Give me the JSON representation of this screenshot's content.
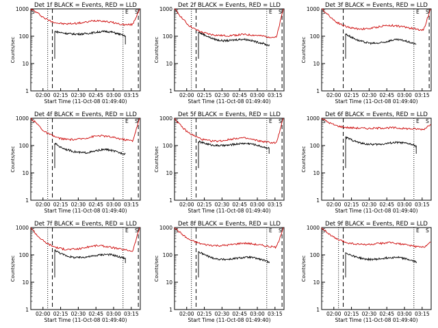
{
  "chart_data": [
    {
      "type": "line",
      "title": "Det 1f BLACK = Events, RED = LLD",
      "xlabel": "Start Time (11-Oct-08 01:49:40)",
      "ylabel": "Counts/sec",
      "x_ticks": [
        "02:00",
        "02:15",
        "02:30",
        "02:45",
        "03:00",
        "03:15"
      ],
      "y_ticks": [
        "1",
        "10",
        "100",
        "1000"
      ],
      "ylim": [
        1,
        1000
      ],
      "y_scale": "log",
      "corner_labels": [
        "S",
        "E",
        "S"
      ],
      "series": [
        {
          "color": "#cc0000",
          "values": [
            1000,
            700,
            460,
            350,
            300,
            280,
            290,
            300,
            320,
            360,
            380,
            350,
            320,
            280,
            260,
            270,
            1000
          ]
        },
        {
          "color": "#000000",
          "values": [
            150,
            135,
            125,
            120,
            120,
            125,
            135,
            145,
            150,
            140,
            120,
            100
          ]
        }
      ],
      "vlines": [
        {
          "time": "02:04",
          "style": "dotted"
        },
        {
          "time": "02:08",
          "style": "dashed"
        },
        {
          "time": "03:08",
          "style": "dotted"
        },
        {
          "time": "03:21",
          "style": "dashed"
        }
      ]
    },
    {
      "type": "line",
      "title": "Det 2f BLACK = Events, RED = LLD",
      "xlabel": "Start Time (11-Oct-08 01:49:40)",
      "ylabel": "Counts/sec",
      "x_ticks": [
        "02:00",
        "02:15",
        "02:30",
        "02:45",
        "03:00",
        "03:15"
      ],
      "y_ticks": [
        "1",
        "10",
        "100",
        "1000"
      ],
      "ylim": [
        1,
        1000
      ],
      "y_scale": "log",
      "corner_labels": [
        "S",
        "E",
        "S"
      ],
      "series": [
        {
          "color": "#cc0000",
          "values": [
            1000,
            500,
            260,
            180,
            140,
            120,
            110,
            105,
            105,
            110,
            115,
            112,
            108,
            100,
            95,
            90,
            1000
          ]
        },
        {
          "color": "#000000",
          "values": [
            140,
            110,
            85,
            72,
            68,
            70,
            75,
            78,
            72,
            62,
            55,
            45
          ]
        }
      ],
      "vlines": [
        {
          "time": "02:04",
          "style": "dotted"
        },
        {
          "time": "02:08",
          "style": "dashed"
        },
        {
          "time": "03:08",
          "style": "dotted"
        },
        {
          "time": "03:21",
          "style": "dashed"
        }
      ]
    },
    {
      "type": "line",
      "title": "Det 3f BLACK = Events, RED = LLD",
      "xlabel": "Start Time (11-Oct-08 01:49:40)",
      "ylabel": "Counts/sec",
      "x_ticks": [
        "02:00",
        "02:15",
        "02:30",
        "02:45",
        "03:00",
        "03:15"
      ],
      "y_ticks": [
        "1",
        "10",
        "100",
        "1000"
      ],
      "ylim": [
        1,
        1000
      ],
      "y_scale": "log",
      "corner_labels": [
        "S",
        "E",
        "S"
      ],
      "series": [
        {
          "color": "#cc0000",
          "values": [
            1000,
            600,
            350,
            260,
            210,
            190,
            185,
            190,
            210,
            240,
            250,
            240,
            220,
            200,
            180,
            170,
            1000
          ]
        },
        {
          "color": "#000000",
          "values": [
            120,
            90,
            70,
            60,
            55,
            55,
            60,
            70,
            75,
            70,
            60,
            50
          ]
        }
      ],
      "vlines": [
        {
          "time": "02:08",
          "style": "dashed"
        },
        {
          "time": "03:08",
          "style": "dotted"
        },
        {
          "time": "03:21",
          "style": "dashed"
        }
      ]
    },
    {
      "type": "line",
      "title": "Det 4f BLACK = Events, RED = LLD",
      "xlabel": "Start Time (11-Oct-08 01:49:40)",
      "ylabel": "Counts/sec",
      "x_ticks": [
        "02:00",
        "02:15",
        "02:30",
        "02:45",
        "03:00",
        "03:15"
      ],
      "y_ticks": [
        "1",
        "10",
        "100",
        "1000"
      ],
      "ylim": [
        1,
        1000
      ],
      "y_scale": "log",
      "corner_labels": [
        "S",
        "E",
        "S"
      ],
      "series": [
        {
          "color": "#cc0000",
          "values": [
            1000,
            600,
            320,
            240,
            190,
            170,
            165,
            170,
            185,
            210,
            230,
            220,
            200,
            180,
            160,
            150,
            1000
          ]
        },
        {
          "color": "#000000",
          "values": [
            120,
            85,
            70,
            60,
            55,
            55,
            60,
            68,
            72,
            65,
            55,
            50
          ]
        }
      ],
      "vlines": [
        {
          "time": "02:04",
          "style": "dotted"
        },
        {
          "time": "02:08",
          "style": "dashed"
        },
        {
          "time": "03:08",
          "style": "dotted"
        },
        {
          "time": "03:21",
          "style": "dashed"
        }
      ]
    },
    {
      "type": "line",
      "title": "Det 5f BLACK = Events, RED = LLD",
      "xlabel": "Start Time (11-Oct-08 01:49:40)",
      "ylabel": "Counts/sec",
      "x_ticks": [
        "02:00",
        "02:15",
        "02:30",
        "02:45",
        "03:00",
        "03:15"
      ],
      "y_ticks": [
        "1",
        "10",
        "100",
        "1000"
      ],
      "ylim": [
        1,
        1000
      ],
      "y_scale": "log",
      "corner_labels": [
        "S",
        "E",
        "S"
      ],
      "series": [
        {
          "color": "#cc0000",
          "values": [
            1000,
            500,
            300,
            220,
            170,
            150,
            145,
            150,
            165,
            185,
            190,
            175,
            155,
            140,
            130,
            125,
            1000
          ]
        },
        {
          "color": "#000000",
          "values": [
            140,
            120,
            105,
            100,
            100,
            105,
            115,
            120,
            118,
            105,
            90,
            80
          ]
        }
      ],
      "vlines": [
        {
          "time": "02:04",
          "style": "dotted"
        },
        {
          "time": "02:08",
          "style": "dashed"
        },
        {
          "time": "03:08",
          "style": "dotted"
        },
        {
          "time": "03:21",
          "style": "dashed"
        }
      ]
    },
    {
      "type": "line",
      "title": "Det 6f BLACK = Events, RED = LLD",
      "xlabel": "Start Time (11-Oct-08 01:49:40)",
      "ylabel": "Counts/sec",
      "x_ticks": [
        "02:00",
        "02:15",
        "02:30",
        "02:45",
        "03:00",
        "03:15"
      ],
      "y_ticks": [
        "1",
        "10",
        "100",
        "1000"
      ],
      "ylim": [
        1,
        1000
      ],
      "y_scale": "log",
      "corner_labels": [
        "S",
        "E",
        "S"
      ],
      "series": [
        {
          "color": "#cc0000",
          "values": [
            1000,
            700,
            550,
            480,
            450,
            440,
            430,
            420,
            430,
            440,
            450,
            440,
            420,
            410,
            400,
            390,
            600
          ]
        },
        {
          "color": "#000000",
          "values": [
            200,
            160,
            130,
            115,
            110,
            110,
            115,
            125,
            130,
            125,
            115,
            95
          ]
        }
      ],
      "vlines": [
        {
          "time": "02:08",
          "style": "dashed"
        },
        {
          "time": "03:08",
          "style": "dotted"
        }
      ]
    },
    {
      "type": "line",
      "title": "Det 7f BLACK = Events, RED = LLD",
      "xlabel": "Start Time (11-Oct-08 01:49:40)",
      "ylabel": "Counts/sec",
      "x_ticks": [
        "02:00",
        "02:15",
        "02:30",
        "02:45",
        "03:00",
        "03:15"
      ],
      "y_ticks": [
        "1",
        "10",
        "100",
        "1000"
      ],
      "ylim": [
        1,
        1000
      ],
      "y_scale": "log",
      "corner_labels": [
        "S",
        "E",
        "S"
      ],
      "series": [
        {
          "color": "#cc0000",
          "values": [
            1000,
            500,
            300,
            220,
            180,
            160,
            160,
            165,
            185,
            210,
            220,
            205,
            185,
            165,
            150,
            140,
            1000
          ]
        },
        {
          "color": "#000000",
          "values": [
            150,
            110,
            90,
            80,
            80,
            85,
            90,
            100,
            105,
            100,
            85,
            75
          ]
        }
      ],
      "vlines": [
        {
          "time": "02:04",
          "style": "dotted"
        },
        {
          "time": "02:08",
          "style": "dashed"
        },
        {
          "time": "03:08",
          "style": "dotted"
        },
        {
          "time": "03:21",
          "style": "dashed"
        }
      ]
    },
    {
      "type": "line",
      "title": "Det 8f BLACK = Events, RED = LLD",
      "xlabel": "Start Time (11-Oct-08 01:49:40)",
      "ylabel": "Counts/sec",
      "x_ticks": [
        "02:00",
        "02:15",
        "02:30",
        "02:45",
        "03:00",
        "03:15"
      ],
      "y_ticks": [
        "1",
        "10",
        "100",
        "1000"
      ],
      "ylim": [
        1,
        1000
      ],
      "y_scale": "log",
      "corner_labels": [
        "S",
        "E",
        "S"
      ],
      "series": [
        {
          "color": "#cc0000",
          "values": [
            1000,
            600,
            380,
            300,
            250,
            230,
            220,
            220,
            230,
            250,
            270,
            260,
            240,
            220,
            200,
            190,
            1000
          ]
        },
        {
          "color": "#000000",
          "values": [
            130,
            100,
            80,
            70,
            68,
            70,
            75,
            80,
            82,
            75,
            65,
            55
          ]
        }
      ],
      "vlines": [
        {
          "time": "02:04",
          "style": "dotted"
        },
        {
          "time": "02:08",
          "style": "dashed"
        },
        {
          "time": "03:08",
          "style": "dotted"
        },
        {
          "time": "03:21",
          "style": "dashed"
        }
      ]
    },
    {
      "type": "line",
      "title": "Det 9f BLACK = Events, RED = LLD",
      "xlabel": "Start Time (11-Oct-08 01:49:40)",
      "ylabel": "Counts/sec",
      "x_ticks": [
        "02:00",
        "02:15",
        "02:30",
        "02:45",
        "03:00",
        "03:15"
      ],
      "y_ticks": [
        "1",
        "10",
        "100",
        "1000"
      ],
      "ylim": [
        1,
        1000
      ],
      "y_scale": "log",
      "corner_labels": [
        "S",
        "E",
        "S"
      ],
      "series": [
        {
          "color": "#cc0000",
          "values": [
            1000,
            600,
            400,
            320,
            270,
            250,
            240,
            240,
            250,
            270,
            280,
            265,
            240,
            220,
            200,
            190,
            300
          ]
        },
        {
          "color": "#000000",
          "values": [
            120,
            95,
            80,
            70,
            68,
            70,
            75,
            80,
            82,
            75,
            65,
            55
          ]
        }
      ],
      "vlines": [
        {
          "time": "02:04",
          "style": "dotted"
        },
        {
          "time": "02:08",
          "style": "dashed"
        },
        {
          "time": "03:08",
          "style": "dotted"
        }
      ]
    }
  ]
}
